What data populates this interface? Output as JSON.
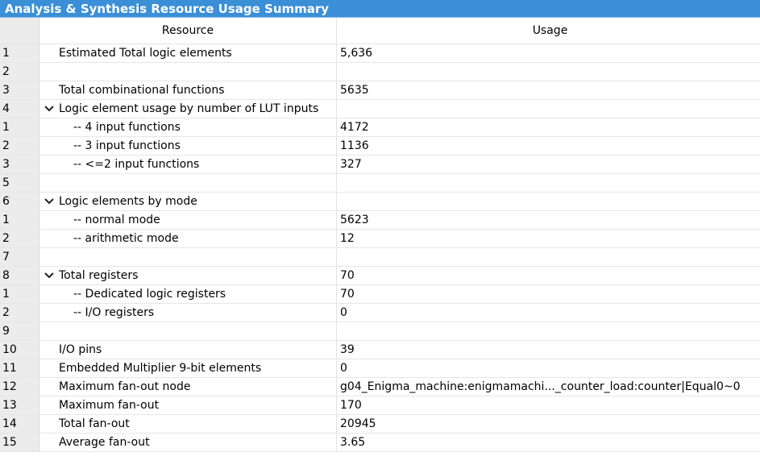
{
  "title": "Analysis & Synthesis Resource Usage Summary",
  "headers": {
    "resource": "Resource",
    "usage": "Usage"
  },
  "rows": [
    {
      "num": "1",
      "label": "Estimated Total logic elements",
      "value": "5,636",
      "level": 0,
      "expandable": false
    },
    {
      "num": "2",
      "label": "",
      "value": "",
      "level": 0,
      "expandable": false
    },
    {
      "num": "3",
      "label": "Total combinational functions",
      "value": "5635",
      "level": 0,
      "expandable": false
    },
    {
      "num": "4",
      "label": "Logic element usage by number of LUT inputs",
      "value": "",
      "level": 0,
      "expandable": true
    },
    {
      "num": "1",
      "label": "-- 4 input functions",
      "value": "4172",
      "level": 1,
      "expandable": false
    },
    {
      "num": "2",
      "label": "-- 3 input functions",
      "value": "1136",
      "level": 1,
      "expandable": false
    },
    {
      "num": "3",
      "label": "-- <=2 input functions",
      "value": "327",
      "level": 1,
      "expandable": false
    },
    {
      "num": "5",
      "label": "",
      "value": "",
      "level": 0,
      "expandable": false
    },
    {
      "num": "6",
      "label": "Logic elements by mode",
      "value": "",
      "level": 0,
      "expandable": true
    },
    {
      "num": "1",
      "label": "-- normal mode",
      "value": "5623",
      "level": 1,
      "expandable": false
    },
    {
      "num": "2",
      "label": "-- arithmetic mode",
      "value": "12",
      "level": 1,
      "expandable": false
    },
    {
      "num": "7",
      "label": "",
      "value": "",
      "level": 0,
      "expandable": false
    },
    {
      "num": "8",
      "label": "Total registers",
      "value": "70",
      "level": 0,
      "expandable": true
    },
    {
      "num": "1",
      "label": "-- Dedicated logic registers",
      "value": "70",
      "level": 1,
      "expandable": false
    },
    {
      "num": "2",
      "label": "-- I/O registers",
      "value": "0",
      "level": 1,
      "expandable": false
    },
    {
      "num": "9",
      "label": "",
      "value": "",
      "level": 0,
      "expandable": false
    },
    {
      "num": "10",
      "label": "I/O pins",
      "value": "39",
      "level": 0,
      "expandable": false
    },
    {
      "num": "11",
      "label": "Embedded Multiplier 9-bit elements",
      "value": "0",
      "level": 0,
      "expandable": false
    },
    {
      "num": "12",
      "label": "Maximum fan-out node",
      "value": "g04_Enigma_machine:enigmamachi..._counter_load:counter|Equal0~0",
      "level": 0,
      "expandable": false
    },
    {
      "num": "13",
      "label": "Maximum fan-out",
      "value": "170",
      "level": 0,
      "expandable": false
    },
    {
      "num": "14",
      "label": "Total fan-out",
      "value": "20945",
      "level": 0,
      "expandable": false
    },
    {
      "num": "15",
      "label": "Average fan-out",
      "value": "3.65",
      "level": 0,
      "expandable": false
    }
  ],
  "icons": {
    "expand": "chevron-down-icon"
  },
  "colors": {
    "title_bg": "#3a8fd6",
    "row_number_bg": "#ececec"
  }
}
